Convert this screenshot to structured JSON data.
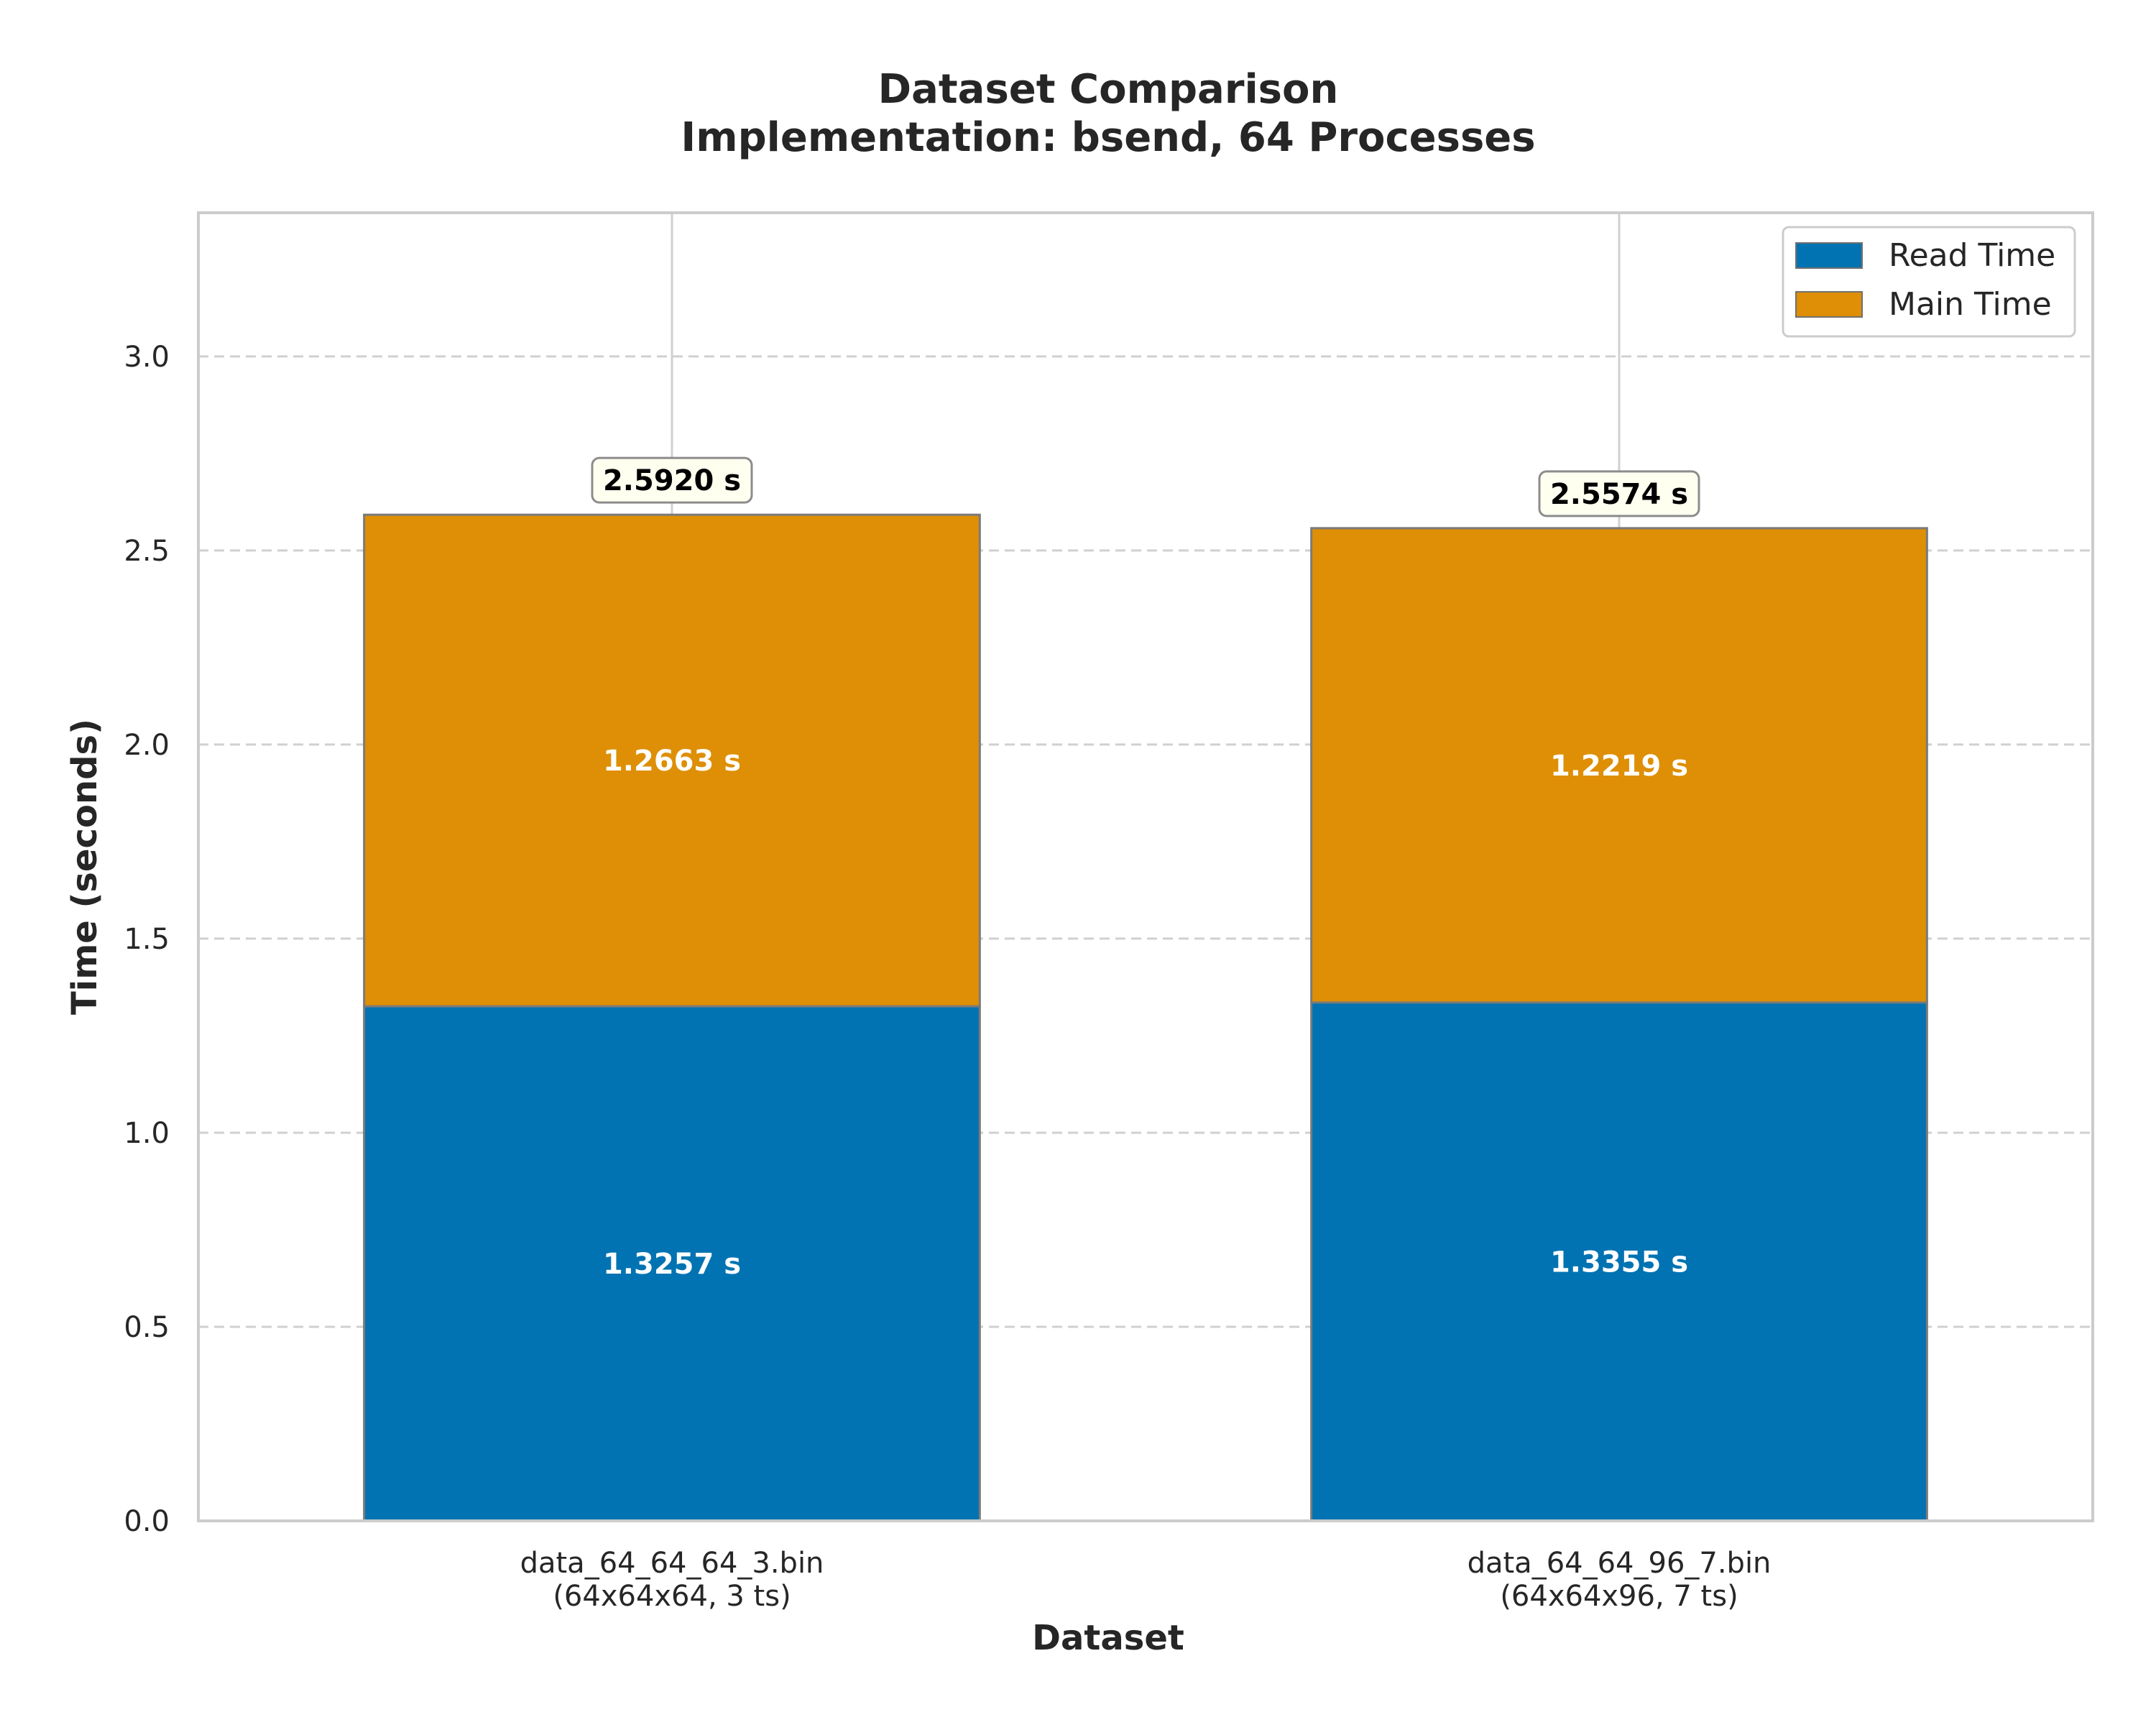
{
  "chart_data": {
    "type": "bar",
    "stacked": true,
    "title": "Dataset Comparison",
    "subtitle": "Implementation: bsend, 64 Processes",
    "xlabel": "Dataset",
    "ylabel": "Time (seconds)",
    "ylim": [
      0,
      3.37
    ],
    "yticks": [
      "0.0",
      "0.5",
      "1.0",
      "1.5",
      "2.0",
      "2.5",
      "3.0"
    ],
    "categories": [
      [
        "data_64_64_64_3.bin",
        "(64x64x64, 3 ts)"
      ],
      [
        "data_64_64_96_7.bin",
        "(64x64x96, 7 ts)"
      ]
    ],
    "series": [
      {
        "name": "Read Time",
        "color": "#0173b2",
        "values": [
          1.3257,
          1.3355
        ],
        "labels": [
          "1.3257 s",
          "1.3355 s"
        ]
      },
      {
        "name": "Main Time",
        "color": "#de8f05",
        "values": [
          1.2663,
          1.2219
        ],
        "labels": [
          "1.2663 s",
          "1.2219 s"
        ]
      }
    ],
    "totals": [
      2.592,
      2.5574
    ],
    "total_labels": [
      "2.5920 s",
      "2.5574 s"
    ],
    "grid": {
      "y": "dashed",
      "x": "solid"
    },
    "legend": "top-right"
  }
}
